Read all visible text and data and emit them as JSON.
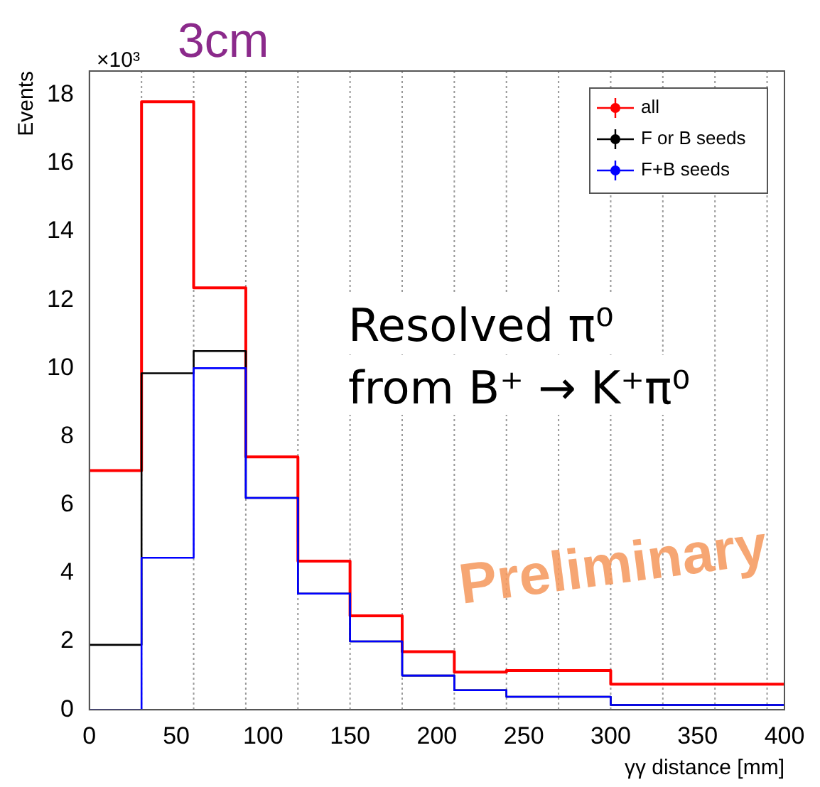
{
  "chart_data": {
    "type": "histogram",
    "title": "3cm",
    "xlabel": "γγ distance [mm]",
    "ylabel": "Events",
    "bins": [
      0,
      30,
      60,
      90,
      120,
      150,
      180,
      210,
      240,
      300,
      400
    ],
    "series": [
      {
        "name": "all",
        "color": "#ff0000",
        "values": [
          7.0,
          17.8,
          12.35,
          7.4,
          4.35,
          2.75,
          1.7,
          1.1,
          1.15,
          0.75
        ]
      },
      {
        "name": "F or B seeds",
        "color": "#000000",
        "values": [
          1.9,
          9.85,
          10.5,
          6.2,
          3.4,
          2.0,
          1.0,
          0.57,
          0.38,
          0.14
        ]
      },
      {
        "name": "F+B seeds",
        "color": "#0000ff",
        "values": [
          0,
          4.45,
          10.0,
          6.2,
          3.4,
          2.0,
          1.0,
          0.57,
          0.38,
          0.14
        ]
      }
    ],
    "xlim": [
      0,
      400
    ],
    "xticks": [
      0,
      50,
      100,
      150,
      200,
      250,
      300,
      350,
      400
    ],
    "ylim": [
      0,
      18.7
    ],
    "yticks": [
      0,
      2,
      4,
      6,
      8,
      10,
      12,
      14,
      16,
      18
    ],
    "ref_lines": [
      {
        "axis": "x",
        "value": 30,
        "color": "#999999",
        "line_style": "dotted"
      },
      {
        "axis": "x",
        "value": 60,
        "color": "#999999",
        "line_style": "dotted"
      },
      {
        "axis": "x",
        "value": 90,
        "color": "#999999",
        "line_style": "dotted"
      },
      {
        "axis": "x",
        "value": 120,
        "color": "#999999",
        "line_style": "dotted"
      },
      {
        "axis": "x",
        "value": 150,
        "color": "#999999",
        "line_style": "dotted"
      },
      {
        "axis": "x",
        "value": 180,
        "color": "#999999",
        "line_style": "dotted"
      },
      {
        "axis": "x",
        "value": 210,
        "color": "#999999",
        "line_style": "dotted"
      },
      {
        "axis": "x",
        "value": 240,
        "color": "#999999",
        "line_style": "dotted"
      },
      {
        "axis": "x",
        "value": 270,
        "color": "#999999",
        "line_style": "dotted"
      },
      {
        "axis": "x",
        "value": 300,
        "color": "#999999",
        "line_style": "dotted"
      },
      {
        "axis": "x",
        "value": 330,
        "color": "#999999",
        "line_style": "dotted"
      },
      {
        "axis": "x",
        "value": 360,
        "color": "#999999",
        "line_style": "dotted"
      },
      {
        "axis": "x",
        "value": 390,
        "color": "#999999",
        "line_style": "dotted"
      }
    ],
    "legend": "top right",
    "annotations": [
      "×10³",
      "Resolved π⁰",
      "from B⁺ → K⁺π⁰",
      "Preliminary"
    ]
  }
}
